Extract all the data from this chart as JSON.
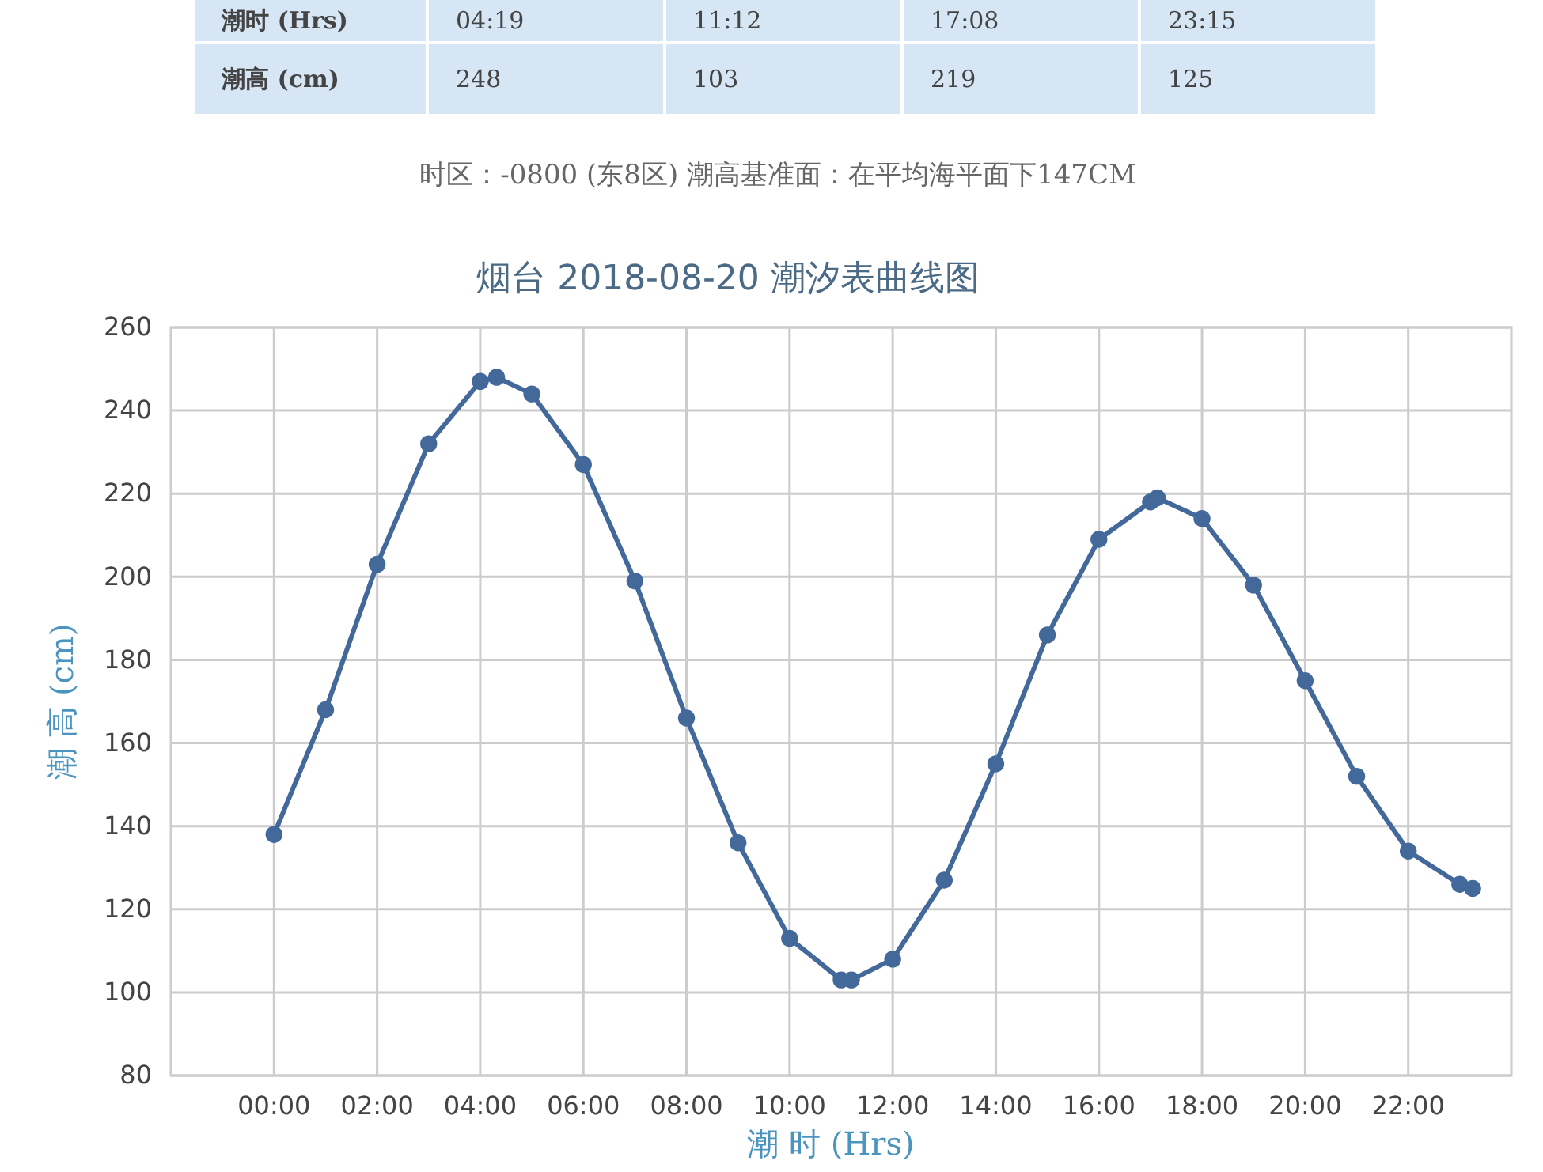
{
  "chart_data": {
    "type": "line",
    "title": "烟台 2018-08-20 潮汐表曲线图",
    "xlabel": "潮 时 (Hrs)",
    "ylabel": "潮 高 (cm)",
    "annotations": [
      "潮时 (Hrs)",
      "04:19",
      "11:12",
      "17:08",
      "23:15",
      "潮高 (cm)",
      "248",
      "103",
      "219",
      "125",
      "时区：-0800 (东8区) 潮高基准面：在平均海平面下147CM"
    ],
    "series": [
      {
        "color": "#43689a",
        "x": [
          0,
          1,
          2,
          3,
          4,
          4.3167,
          5,
          6,
          7,
          8,
          9,
          10,
          11,
          11.2,
          12,
          13,
          14,
          15,
          16,
          17,
          17.1333,
          18,
          19,
          20,
          21,
          22,
          23,
          23.25
        ],
        "values": [
          138,
          168,
          203,
          232,
          247,
          248,
          244,
          227,
          199,
          166,
          136,
          113,
          103,
          103,
          108,
          127,
          155,
          186,
          209,
          218,
          219,
          214,
          198,
          175,
          152,
          134,
          126,
          125
        ]
      }
    ],
    "xlim": [
      -2,
      24
    ],
    "xticks": [
      {
        "value": 0,
        "label": "00:00"
      },
      {
        "value": 2,
        "label": "02:00"
      },
      {
        "value": 4,
        "label": "04:00"
      },
      {
        "value": 6,
        "label": "06:00"
      },
      {
        "value": 8,
        "label": "08:00"
      },
      {
        "value": 10,
        "label": "10:00"
      },
      {
        "value": 12,
        "label": "12:00"
      },
      {
        "value": 14,
        "label": "14:00"
      },
      {
        "value": 16,
        "label": "16:00"
      },
      {
        "value": 18,
        "label": "18:00"
      },
      {
        "value": 20,
        "label": "20:00"
      },
      {
        "value": 22,
        "label": "22:00"
      }
    ],
    "ylim": [
      80,
      260
    ],
    "yticks": [
      80,
      100,
      120,
      140,
      160,
      180,
      200,
      220,
      240,
      260
    ],
    "grid": true,
    "marker": "circle",
    "line_style": "solid"
  }
}
